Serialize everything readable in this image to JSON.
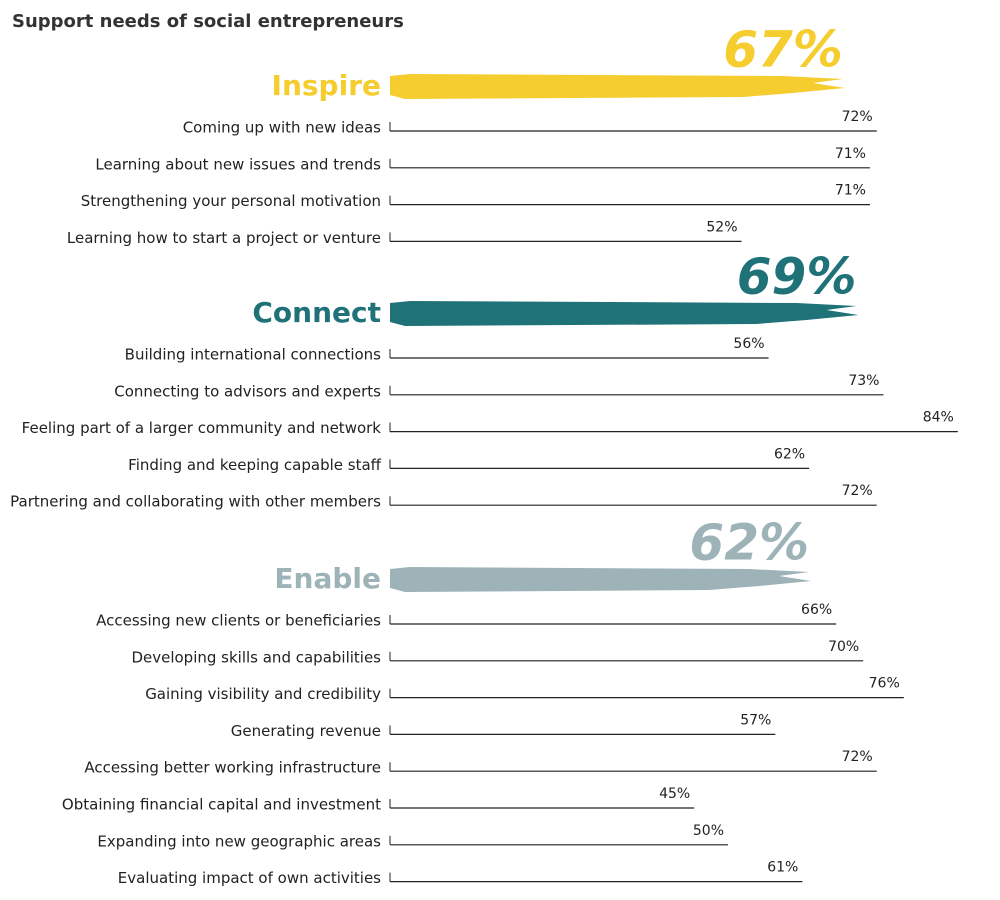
{
  "chart_data": {
    "type": "bar",
    "title": "Support needs of social entrepreneurs",
    "groups": [
      {
        "name": "Inspire",
        "color": "#f5cd2e",
        "total": 67,
        "total_label": "67%",
        "categories": [
          "Coming up with new ideas",
          "Learning about new issues and trends",
          "Strengthening your personal motivation",
          "Learning how to start a project or venture"
        ],
        "values": [
          72,
          71,
          71,
          52
        ],
        "value_labels": [
          "72%",
          "71%",
          "71%",
          "52%"
        ]
      },
      {
        "name": "Connect",
        "color": "#1e7278",
        "total": 69,
        "total_label": "69%",
        "categories": [
          "Building international connections",
          "Connecting to advisors and experts",
          "Feeling part of a larger community and network",
          "Finding and keeping capable staff",
          "Partnering and collaborating with other members"
        ],
        "values": [
          56,
          73,
          84,
          62,
          72
        ],
        "value_labels": [
          "56%",
          "73%",
          "84%",
          "62%",
          "72%"
        ]
      },
      {
        "name": "Enable",
        "color": "#9db3b8",
        "total": 62,
        "total_label": "62%",
        "categories": [
          "Accessing new clients or beneficiaries",
          "Developing skills and capabilities",
          "Gaining visibility and credibility",
          "Generating revenue",
          "Accessing better working infrastructure",
          "Obtaining financial capital and investment",
          "Expanding into new geographic areas",
          "Evaluating impact of own activities"
        ],
        "values": [
          66,
          70,
          76,
          57,
          72,
          45,
          50,
          61
        ],
        "value_labels": [
          "66%",
          "70%",
          "76%",
          "57%",
          "72%",
          "45%",
          "50%",
          "61%"
        ]
      }
    ]
  }
}
